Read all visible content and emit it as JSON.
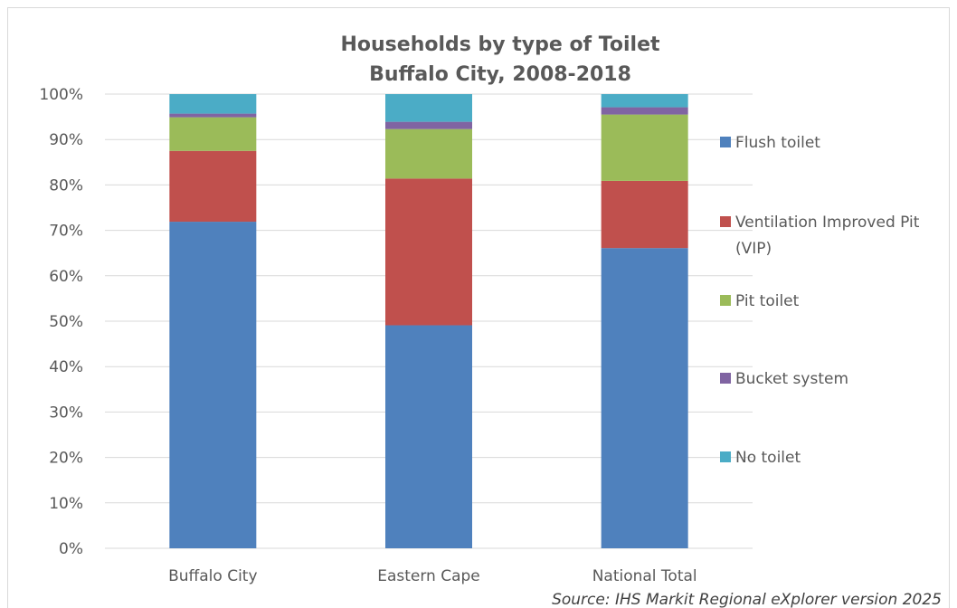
{
  "chart_data": {
    "type": "bar",
    "stacked": true,
    "percent": true,
    "title": "Households by type of Toilet",
    "subtitle": "Buffalo City, 2008-2018",
    "categories": [
      "Buffalo City",
      "Eastern Cape",
      "National Total"
    ],
    "y_ticks": [
      "0%",
      "10%",
      "20%",
      "30%",
      "40%",
      "50%",
      "60%",
      "70%",
      "80%",
      "90%",
      "100%"
    ],
    "ylim": [
      0,
      100
    ],
    "grid": true,
    "legend_position": "right",
    "series": [
      {
        "name": "Flush toilet",
        "color": "#4f81bd",
        "values": [
          71.9,
          49.1,
          66.1
        ]
      },
      {
        "name": "Ventilation Improved Pit (VIP)",
        "label_lines": [
          "Ventilation Improved Pit",
          "(VIP)"
        ],
        "color": "#c0504d",
        "values": [
          15.6,
          32.3,
          14.8
        ]
      },
      {
        "name": "Pit toilet",
        "color": "#9bbb59",
        "values": [
          7.4,
          10.9,
          14.6
        ]
      },
      {
        "name": "Bucket system",
        "color": "#8064a2",
        "values": [
          0.8,
          1.6,
          1.6
        ]
      },
      {
        "name": "No toilet",
        "color": "#4bacc6",
        "values": [
          4.3,
          6.1,
          2.9
        ]
      }
    ],
    "source": "Source: IHS Markit Regional eXplorer version 2025"
  }
}
